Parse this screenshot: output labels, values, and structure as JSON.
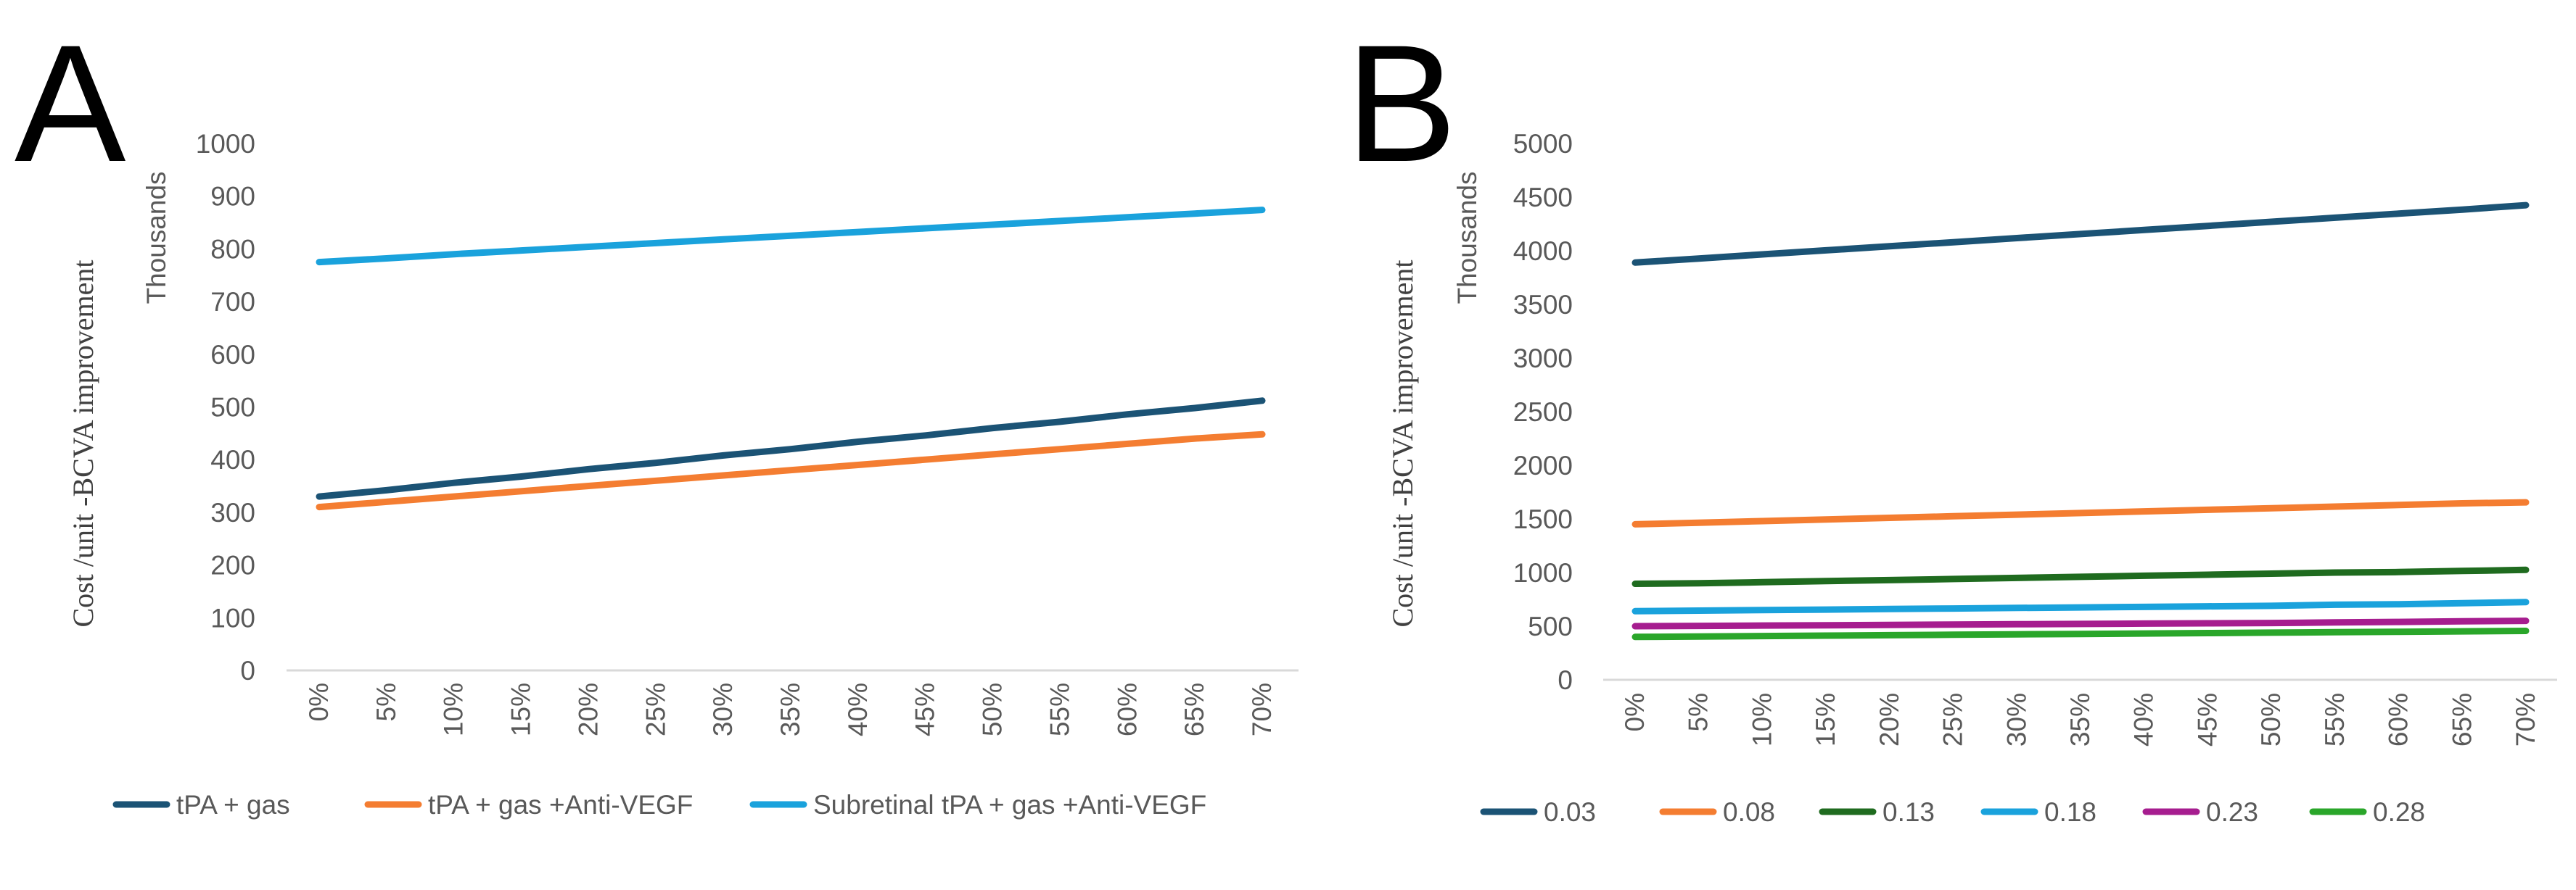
{
  "figure": {
    "panels": [
      "A",
      "B"
    ],
    "ylabel": "Cost /unit -BCVA improvement",
    "units_label": "Thousands"
  },
  "chart_data": [
    {
      "panel": "A",
      "type": "line",
      "title": "",
      "xlabel": "",
      "ylabel": "Cost /unit -BCVA improvement",
      "units_label": "Thousands",
      "categories": [
        "0%",
        "5%",
        "10%",
        "15%",
        "20%",
        "25%",
        "30%",
        "35%",
        "40%",
        "45%",
        "50%",
        "55%",
        "60%",
        "65%",
        "70%"
      ],
      "yticks": [
        "0",
        "100",
        "200",
        "300",
        "400",
        "500",
        "600",
        "700",
        "800",
        "900",
        "1000"
      ],
      "ylim": [
        0,
        1000
      ],
      "grid": false,
      "legend_position": "bottom",
      "series": [
        {
          "name": "tPA + gas",
          "color": "#1b5375",
          "values": [
            330,
            342,
            356,
            368,
            382,
            394,
            408,
            420,
            434,
            446,
            460,
            472,
            486,
            498,
            512
          ]
        },
        {
          "name": "tPA + gas +Anti-VEGF",
          "color": "#f47d31",
          "values": [
            310,
            320,
            330,
            340,
            350,
            360,
            370,
            380,
            390,
            400,
            410,
            420,
            430,
            440,
            448
          ]
        },
        {
          "name": "Subretinal tPA + gas +Anti-VEGF",
          "color": "#1aa2dc",
          "values": [
            775,
            782,
            790,
            797,
            804,
            811,
            818,
            825,
            832,
            839,
            846,
            853,
            860,
            867,
            874
          ]
        }
      ]
    },
    {
      "panel": "B",
      "type": "line",
      "title": "",
      "xlabel": "",
      "ylabel": "Cost /unit -BCVA improvement",
      "units_label": "Thousands",
      "categories": [
        "0%",
        "5%",
        "10%",
        "15%",
        "20%",
        "25%",
        "30%",
        "35%",
        "40%",
        "45%",
        "50%",
        "55%",
        "60%",
        "65%",
        "70%"
      ],
      "yticks": [
        "0",
        "500",
        "1000",
        "1500",
        "2000",
        "2500",
        "3000",
        "3500",
        "4000",
        "4500",
        "5000"
      ],
      "ylim": [
        0,
        5000
      ],
      "grid": false,
      "legend_position": "bottom",
      "series": [
        {
          "name": "0.03",
          "color": "#1b5375",
          "values": [
            3890,
            3928,
            3966,
            4004,
            4042,
            4080,
            4118,
            4156,
            4194,
            4232,
            4270,
            4308,
            4346,
            4384,
            4425
          ]
        },
        {
          "name": "0.08",
          "color": "#f47d31",
          "values": [
            1450,
            1465,
            1480,
            1495,
            1510,
            1525,
            1540,
            1555,
            1570,
            1585,
            1600,
            1615,
            1630,
            1645,
            1655
          ]
        },
        {
          "name": "0.13",
          "color": "#1f6b1f",
          "values": [
            895,
            900,
            910,
            920,
            930,
            940,
            950,
            960,
            970,
            980,
            990,
            1000,
            1005,
            1015,
            1025
          ]
        },
        {
          "name": "0.18",
          "color": "#1aa2dc",
          "values": [
            640,
            645,
            650,
            655,
            660,
            665,
            670,
            675,
            680,
            685,
            690,
            700,
            705,
            715,
            725
          ]
        },
        {
          "name": "0.23",
          "color": "#a61d8f",
          "values": [
            500,
            503,
            506,
            509,
            512,
            515,
            518,
            521,
            524,
            527,
            530,
            535,
            540,
            545,
            550
          ]
        },
        {
          "name": "0.28",
          "color": "#2aa62a",
          "values": [
            400,
            404,
            408,
            412,
            416,
            420,
            424,
            428,
            432,
            436,
            440,
            444,
            448,
            452,
            456
          ]
        }
      ]
    }
  ]
}
